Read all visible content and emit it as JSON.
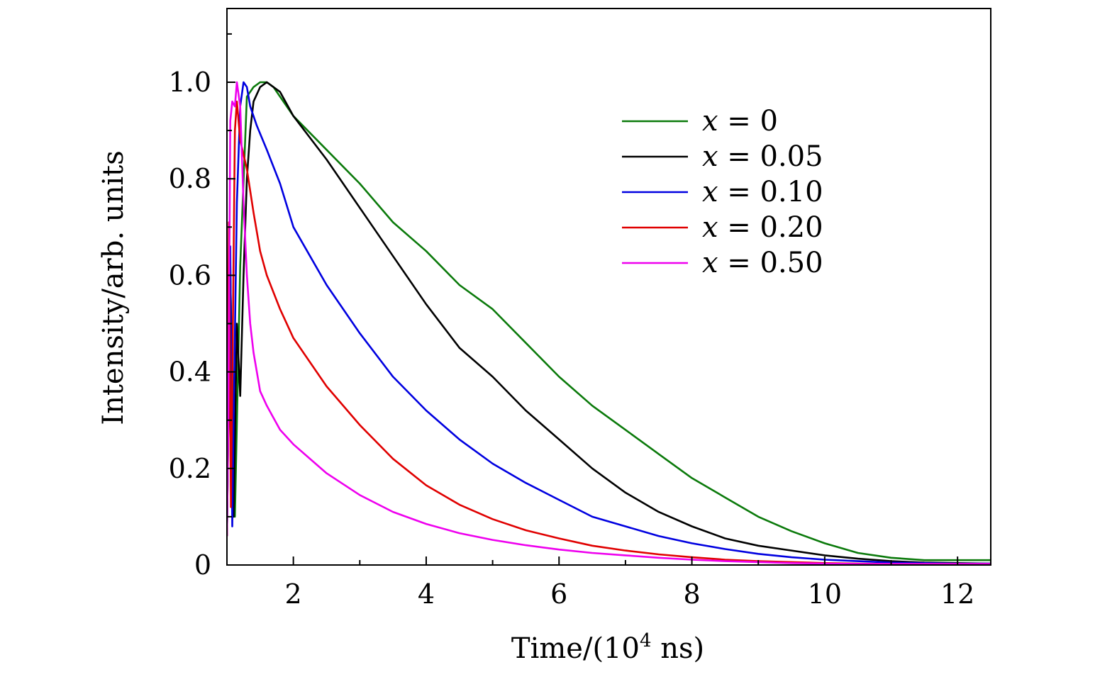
{
  "chart_data": {
    "type": "line",
    "title": "",
    "xlabel": "Time/(10",
    "xlabel_sup": "4",
    "xlabel_suffix": " ns)",
    "ylabel": "Intensity/arb. units",
    "xlim": [
      1.0,
      12.5
    ],
    "ylim": [
      0,
      1.0
    ],
    "xticks": [
      2,
      4,
      6,
      8,
      10,
      12
    ],
    "xtick_labels": [
      "2",
      "4",
      "6",
      "8",
      "10",
      "12"
    ],
    "yticks": [
      0,
      0.2,
      0.4,
      0.6,
      0.8,
      1.0
    ],
    "ytick_labels": [
      "0",
      "0.2",
      "0.4",
      "0.6",
      "0.8",
      "1.0"
    ],
    "grid": false,
    "legend_position": "top-right",
    "series": [
      {
        "name": "x = 0",
        "legend_var": "x",
        "legend_value": "= 0",
        "color": "#0b7a0b",
        "x": [
          1.0,
          1.05,
          1.12,
          1.2,
          1.3,
          1.4,
          1.5,
          1.6,
          1.7,
          1.8,
          2.0,
          2.5,
          3.0,
          3.5,
          4.0,
          4.5,
          5.0,
          5.5,
          6.0,
          6.5,
          7.0,
          7.5,
          8.0,
          8.5,
          9.0,
          9.5,
          10.0,
          10.5,
          11.0,
          11.5,
          12.0,
          12.5
        ],
        "y": [
          0.06,
          0.6,
          0.1,
          0.62,
          0.97,
          0.99,
          1.0,
          1.0,
          0.99,
          0.97,
          0.93,
          0.86,
          0.79,
          0.71,
          0.65,
          0.58,
          0.53,
          0.46,
          0.39,
          0.33,
          0.28,
          0.23,
          0.18,
          0.14,
          0.1,
          0.07,
          0.045,
          0.025,
          0.015,
          0.01,
          0.01,
          0.01
        ]
      },
      {
        "name": "x = 0.05",
        "legend_var": "x",
        "legend_value": "= 0.05",
        "color": "#000000",
        "x": [
          1.0,
          1.05,
          1.1,
          1.15,
          1.2,
          1.25,
          1.3,
          1.35,
          1.4,
          1.5,
          1.6,
          1.7,
          1.8,
          2.0,
          2.5,
          3.0,
          3.5,
          4.0,
          4.5,
          5.0,
          5.5,
          6.0,
          6.5,
          7.0,
          7.5,
          8.0,
          8.5,
          9.0,
          9.5,
          10.0,
          10.5,
          11.0,
          11.5,
          12.0,
          12.5
        ],
        "y": [
          0.06,
          0.62,
          0.1,
          0.5,
          0.35,
          0.6,
          0.8,
          0.9,
          0.96,
          0.99,
          1.0,
          0.99,
          0.98,
          0.93,
          0.84,
          0.74,
          0.64,
          0.54,
          0.45,
          0.39,
          0.32,
          0.26,
          0.2,
          0.15,
          0.11,
          0.08,
          0.055,
          0.04,
          0.03,
          0.02,
          0.013,
          0.008,
          0.005,
          0.004,
          0.003
        ]
      },
      {
        "name": "x = 0.10",
        "legend_var": "x",
        "legend_value": "= 0.10",
        "color": "#0000e0",
        "x": [
          1.0,
          1.05,
          1.08,
          1.1,
          1.15,
          1.2,
          1.25,
          1.3,
          1.35,
          1.45,
          1.6,
          1.8,
          2.0,
          2.5,
          3.0,
          3.5,
          4.0,
          4.5,
          5.0,
          5.5,
          6.0,
          6.5,
          7.0,
          7.5,
          8.0,
          8.5,
          9.0,
          9.5,
          10.0,
          10.5,
          11.0,
          11.5,
          12.0,
          12.5
        ],
        "y": [
          0.06,
          0.66,
          0.08,
          0.3,
          0.75,
          0.95,
          1.0,
          0.99,
          0.95,
          0.91,
          0.86,
          0.79,
          0.7,
          0.58,
          0.48,
          0.39,
          0.32,
          0.26,
          0.21,
          0.17,
          0.135,
          0.1,
          0.08,
          0.06,
          0.045,
          0.033,
          0.023,
          0.016,
          0.011,
          0.008,
          0.005,
          0.004,
          0.003,
          0.003
        ]
      },
      {
        "name": "x = 0.20",
        "legend_var": "x",
        "legend_value": "= 0.20",
        "color": "#e00000",
        "x": [
          1.0,
          1.03,
          1.06,
          1.09,
          1.12,
          1.15,
          1.2,
          1.3,
          1.4,
          1.5,
          1.6,
          1.8,
          2.0,
          2.5,
          3.0,
          3.5,
          4.0,
          4.5,
          5.0,
          5.5,
          6.0,
          6.5,
          7.0,
          7.5,
          8.0,
          8.5,
          9.0,
          9.5,
          10.0,
          10.5,
          11.0,
          11.5,
          12.0,
          12.5
        ],
        "y": [
          0.06,
          0.71,
          0.12,
          0.5,
          0.9,
          0.96,
          0.88,
          0.82,
          0.73,
          0.65,
          0.6,
          0.53,
          0.47,
          0.37,
          0.29,
          0.22,
          0.165,
          0.125,
          0.095,
          0.072,
          0.055,
          0.04,
          0.03,
          0.022,
          0.016,
          0.011,
          0.008,
          0.006,
          0.004,
          0.003,
          0.002,
          0.002,
          0.002,
          0.002
        ]
      },
      {
        "name": "x = 0.50",
        "legend_var": "x",
        "legend_value": "= 0.50",
        "color": "#ee00ee",
        "x": [
          1.0,
          1.02,
          1.05,
          1.08,
          1.12,
          1.15,
          1.2,
          1.25,
          1.3,
          1.35,
          1.4,
          1.5,
          1.6,
          1.8,
          2.0,
          2.5,
          3.0,
          3.5,
          4.0,
          4.5,
          5.0,
          5.5,
          6.0,
          6.5,
          7.0,
          7.5,
          8.0,
          8.5,
          9.0,
          9.5,
          10.0,
          10.5,
          11.0,
          11.5,
          12.0,
          12.5
        ],
        "y": [
          0.06,
          0.3,
          0.92,
          0.96,
          0.95,
          1.0,
          0.95,
          0.75,
          0.6,
          0.5,
          0.44,
          0.36,
          0.33,
          0.28,
          0.25,
          0.19,
          0.145,
          0.11,
          0.085,
          0.066,
          0.052,
          0.041,
          0.032,
          0.025,
          0.02,
          0.015,
          0.011,
          0.008,
          0.006,
          0.004,
          0.003,
          0.002,
          0.002,
          0.002,
          0.002,
          0.002
        ]
      }
    ]
  }
}
